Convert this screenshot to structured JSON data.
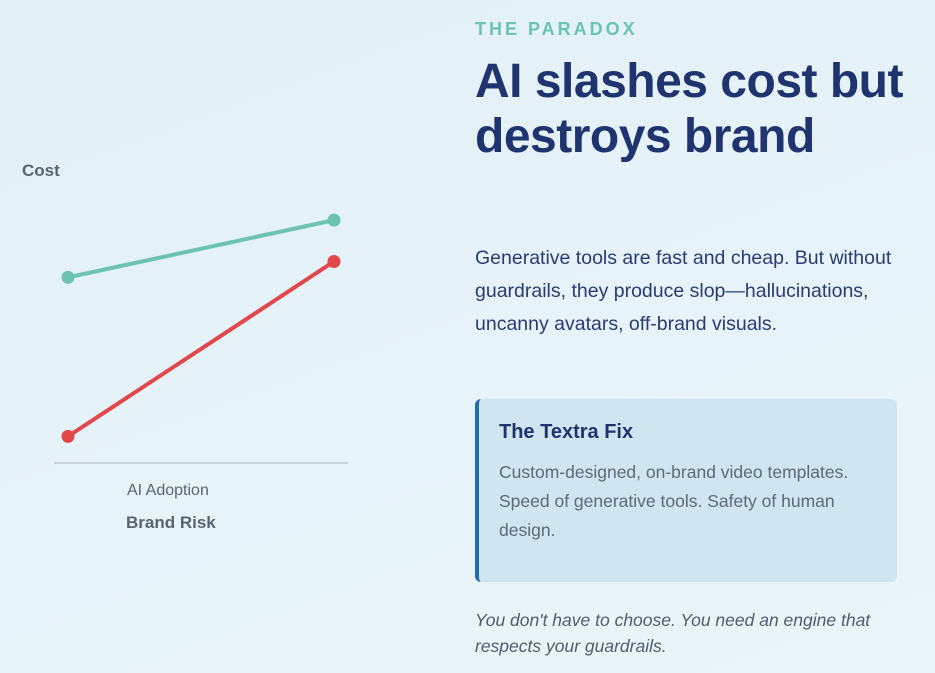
{
  "eyebrow": "THE PARADOX",
  "headline": "AI slashes cost but destroys brand",
  "body": "Generative tools are fast and cheap. But without guardrails, they produce slop—hallucinations, uncanny avatars, off-brand visuals.",
  "fix_card": {
    "title": "The Textra Fix",
    "text": "Custom-designed, on-brand video templates. Speed of generative tools. Safety of human design."
  },
  "footnote": "You don't have to choose. You need an engine that respects your guardrails.",
  "colors": {
    "accent_teal": "#6cc3b0",
    "risk_red": "#e2474b",
    "navy": "#1f336e",
    "card_border": "#1f6fb0"
  },
  "chart_data": {
    "type": "line",
    "ylabel": "Cost",
    "xlabel": "AI Adoption",
    "xlabel_secondary": "Brand Risk",
    "x": [
      0,
      1
    ],
    "ylim": [
      0,
      100
    ],
    "grid": false,
    "legend": "none",
    "series": [
      {
        "values": [
          59,
          77
        ],
        "color": "#6cc3b0"
      },
      {
        "values": [
          9,
          64
        ],
        "color": "#e2474b"
      }
    ]
  }
}
